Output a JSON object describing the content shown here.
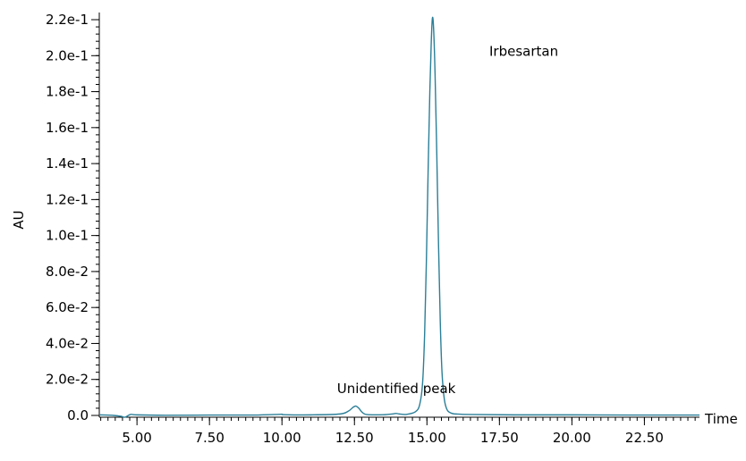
{
  "chart_data": {
    "type": "line",
    "title": "",
    "xlabel": "Time",
    "ylabel": "AU",
    "xlim": [
      3.7,
      24.4
    ],
    "ylim": [
      -0.001,
      0.222
    ],
    "grid": false,
    "x_ticks": [
      5.0,
      7.5,
      10.0,
      12.5,
      15.0,
      17.5,
      20.0,
      22.5
    ],
    "x_tick_labels": [
      "5.00",
      "7.50",
      "10.00",
      "12.50",
      "15.00",
      "17.50",
      "20.00",
      "22.50"
    ],
    "y_ticks": [
      0.0,
      0.02,
      0.04,
      0.06,
      0.08,
      0.1,
      0.12,
      0.14,
      0.16,
      0.18,
      0.2,
      0.22
    ],
    "y_tick_labels": [
      "0.0",
      "2.0e-2",
      "4.0e-2",
      "6.0e-2",
      "8.0e-2",
      "1.0e-1",
      "1.2e-1",
      "1.4e-1",
      "1.6e-1",
      "1.8e-1",
      "2.0e-1",
      "2.2e-1"
    ],
    "series": [
      {
        "color": "#2b7f98",
        "x": [
          3.7,
          4.2,
          4.45,
          4.55,
          4.62,
          4.7,
          4.8,
          5.0,
          6.0,
          7.5,
          9.0,
          9.9,
          10.0,
          10.1,
          11.0,
          12.0,
          12.3,
          12.45,
          12.55,
          12.65,
          12.75,
          12.85,
          13.0,
          13.5,
          13.85,
          13.95,
          14.05,
          14.3,
          14.6,
          14.75,
          14.85,
          14.92,
          14.98,
          15.04,
          15.1,
          15.15,
          15.19,
          15.23,
          15.28,
          15.34,
          15.4,
          15.46,
          15.52,
          15.6,
          15.7,
          15.85,
          16.0,
          16.5,
          18.0,
          20.0,
          22.0,
          24.4
        ],
        "y": [
          0.0003,
          0.0,
          -0.0005,
          -0.001,
          -0.0008,
          0.0,
          0.0006,
          0.0003,
          0.0001,
          0.0002,
          0.0002,
          0.0006,
          0.0007,
          0.0004,
          0.0003,
          0.0008,
          0.0025,
          0.0045,
          0.0052,
          0.004,
          0.002,
          0.0008,
          0.0004,
          0.0004,
          0.0009,
          0.0011,
          0.0008,
          0.0006,
          0.002,
          0.006,
          0.018,
          0.045,
          0.085,
          0.135,
          0.18,
          0.208,
          0.221,
          0.215,
          0.19,
          0.145,
          0.095,
          0.052,
          0.024,
          0.009,
          0.003,
          0.0012,
          0.0008,
          0.0005,
          0.0003,
          0.0003,
          0.0002,
          0.0002
        ]
      }
    ],
    "annotations": [
      {
        "text": "Irbesartan",
        "x": 17.15,
        "y": 0.2
      },
      {
        "text": "Unidentified peak",
        "x": 11.9,
        "y": 0.0125
      }
    ]
  }
}
